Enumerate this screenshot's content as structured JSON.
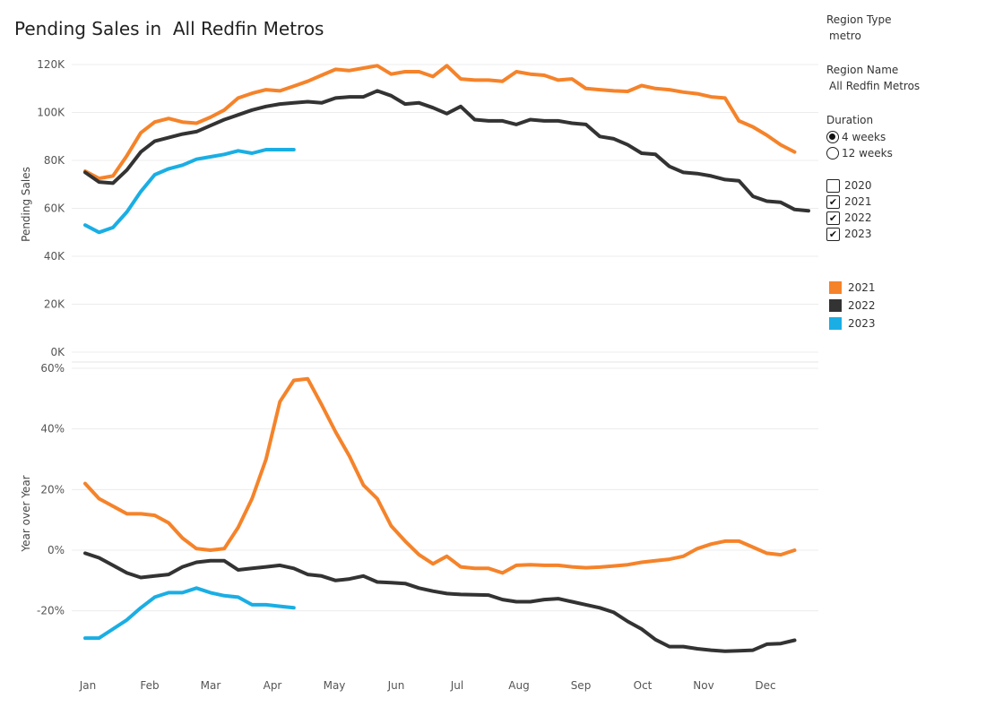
{
  "title": "Pending Sales in  All Redfin Metros",
  "sidebar": {
    "region_type_title": "Region Type",
    "region_type_value": "metro",
    "region_name_title": "Region Name",
    "region_name_value": "All Redfin Metros",
    "duration_title": "Duration",
    "duration_options": [
      {
        "label": "4 weeks",
        "selected": true
      },
      {
        "label": "12 weeks",
        "selected": false
      }
    ],
    "year_filters": [
      {
        "label": "2020",
        "checked": false
      },
      {
        "label": "2021",
        "checked": true
      },
      {
        "label": "2022",
        "checked": true
      },
      {
        "label": "2023",
        "checked": true
      }
    ],
    "legend": [
      {
        "label": "2021",
        "color": "#f5832a"
      },
      {
        "label": "2022",
        "color": "#333333"
      },
      {
        "label": "2023",
        "color": "#1aaee4"
      }
    ]
  },
  "chart_data": [
    {
      "type": "line",
      "ylabel": "Pending Sales",
      "yticks": [
        "0K",
        "20K",
        "40K",
        "60K",
        "80K",
        "100K",
        "120K"
      ],
      "ylim": [
        0,
        120000
      ],
      "grid": true,
      "xticks": [
        "Jan",
        "Feb",
        "Mar",
        "Apr",
        "May",
        "Jun",
        "Jul",
        "Aug",
        "Sep",
        "Oct",
        "Nov",
        "Dec"
      ],
      "series": [
        {
          "name": "2021",
          "color": "#f5832a",
          "values": [
            75500,
            72500,
            73500,
            82000,
            91500,
            96000,
            97500,
            96000,
            95500,
            98000,
            101000,
            106000,
            108000,
            109500,
            109000,
            111000,
            113000,
            115500,
            118000,
            117500,
            118500,
            119500,
            116000,
            117000,
            117000,
            115000,
            119500,
            114000,
            113500,
            113500,
            113000,
            117000,
            116000,
            115500,
            113500,
            114000,
            110000,
            109500,
            109000,
            108800,
            111200,
            110000,
            109500,
            108500,
            107800,
            106500,
            106000,
            96500,
            94000,
            90500,
            86500,
            83500
          ]
        },
        {
          "name": "2022",
          "color": "#333333",
          "values": [
            75000,
            71000,
            70500,
            76000,
            83500,
            88000,
            89500,
            91000,
            92000,
            94500,
            97000,
            99000,
            101000,
            102500,
            103500,
            104000,
            104500,
            104000,
            106000,
            106500,
            106500,
            109000,
            107000,
            103500,
            104000,
            102000,
            99500,
            102500,
            97000,
            96500,
            96500,
            95000,
            97000,
            96500,
            96500,
            95500,
            95000,
            90000,
            89000,
            86500,
            83000,
            82500,
            77500,
            75000,
            74500,
            73500,
            72000,
            71500,
            65000,
            63000,
            62500,
            59500,
            59000
          ]
        },
        {
          "name": "2023",
          "color": "#1aaee4",
          "values": [
            53000,
            50000,
            52000,
            58500,
            67000,
            74000,
            76500,
            78000,
            80500,
            81500,
            82500,
            84000,
            83000,
            84500,
            84500,
            84500
          ]
        }
      ]
    },
    {
      "type": "line",
      "ylabel": "Year over Year",
      "yticks": [
        "-20%",
        "0%",
        "20%",
        "40%",
        "60%"
      ],
      "ylim": [
        -30,
        60
      ],
      "grid": true,
      "xticks": [
        "Jan",
        "Feb",
        "Mar",
        "Apr",
        "May",
        "Jun",
        "Jul",
        "Aug",
        "Sep",
        "Oct",
        "Nov",
        "Dec"
      ],
      "series": [
        {
          "name": "2021",
          "color": "#f5832a",
          "values": [
            22,
            17,
            14.5,
            12,
            12,
            11.5,
            9,
            4,
            0.5,
            0,
            0.5,
            7.5,
            17,
            30,
            49,
            56,
            56.5,
            48,
            39,
            31,
            21.5,
            17,
            8,
            3,
            -1.5,
            -4.5,
            -2,
            -5.5,
            -6,
            -6,
            -7.5,
            -5,
            -4.8,
            -5,
            -5,
            -5.5,
            -5.8,
            -5.6,
            -5.2,
            -4.8,
            -4,
            -3.5,
            -3,
            -2,
            0.5,
            2,
            3,
            3,
            1,
            -1,
            -1.5,
            0
          ]
        },
        {
          "name": "2022",
          "color": "#333333",
          "values": [
            -1,
            -2.5,
            -5,
            -7.5,
            -9,
            -8.5,
            -8,
            -5.5,
            -4,
            -3.5,
            -3.5,
            -6.5,
            -6,
            -5.5,
            -5,
            -6,
            -8,
            -8.5,
            -10,
            -9.5,
            -8.5,
            -10.5,
            -10.7,
            -11,
            -12.5,
            -13.5,
            -14.3,
            -14.6,
            -14.7,
            -14.8,
            -16.3,
            -17,
            -17,
            -16.3,
            -16,
            -17,
            -18,
            -19,
            -20.5,
            -23.5,
            -26,
            -29.5,
            -31.8,
            -31.8,
            -32.5,
            -33,
            -33.3,
            -33.2,
            -33,
            -31,
            -30.8,
            -29.7
          ]
        },
        {
          "name": "2023",
          "color": "#1aaee4",
          "values": [
            -29,
            -29,
            -26,
            -23,
            -19,
            -15.5,
            -14,
            -14,
            -12.5,
            -14,
            -15,
            -15.5,
            -18,
            -18,
            -18.5,
            -19
          ]
        }
      ]
    }
  ]
}
